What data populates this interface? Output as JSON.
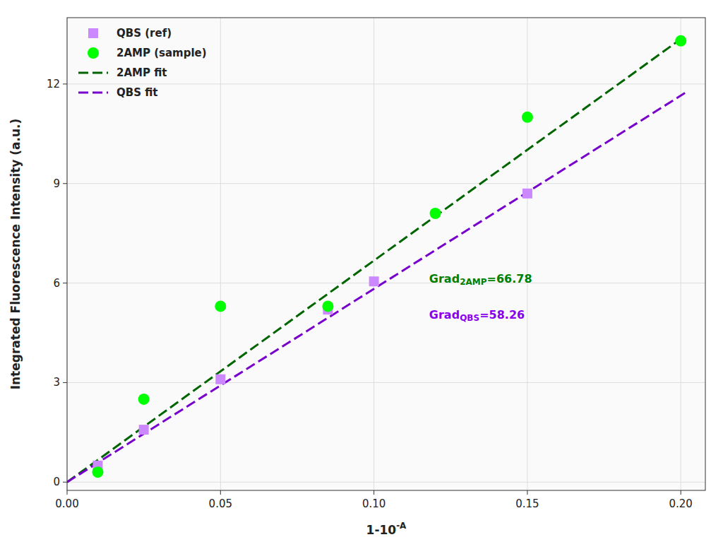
{
  "chart_data": {
    "type": "scatter",
    "x_label": {
      "text": "1-10",
      "sup": "-A"
    },
    "y_label": "Integrated Fluorescence Intensity (a.u.)",
    "xlim": [
      0.0,
      0.208
    ],
    "ylim": [
      -0.25,
      14.0
    ],
    "xticks": [
      {
        "value": 0.0,
        "label": "0.00"
      },
      0.05,
      {
        "value": 0.1,
        "label": "0.10"
      },
      0.15,
      {
        "value": 0.2,
        "label": "0.20"
      }
    ],
    "yticks": [
      0,
      3,
      6,
      9,
      12
    ],
    "grid": true,
    "legend": "upper left",
    "series": [
      {
        "name": "QBS (ref)",
        "type": "scatter",
        "marker": "square",
        "color": "#cc88ff",
        "x": [
          0.01,
          0.025,
          0.05,
          0.085,
          0.1,
          0.15
        ],
        "values": [
          0.5,
          1.58,
          3.1,
          5.2,
          6.05,
          8.7
        ]
      },
      {
        "name": "2AMP (sample)",
        "type": "scatter",
        "marker": "circle",
        "color": "#00ff00",
        "x": [
          0.01,
          0.025,
          0.05,
          0.085,
          0.12,
          0.15,
          0.2
        ],
        "values": [
          0.3,
          2.5,
          5.3,
          5.3,
          8.1,
          11.0,
          13.3
        ]
      },
      {
        "name": "2AMP fit",
        "type": "line",
        "line_style": "dashed",
        "color": "#006400",
        "x": [
          0.0,
          0.2015
        ],
        "values": [
          0.0,
          13.45617
        ]
      },
      {
        "name": "QBS fit",
        "type": "line",
        "line_style": "dashed",
        "color": "#7700cc",
        "x": [
          0.0,
          0.2015
        ],
        "values": [
          0.0,
          11.73939
        ]
      }
    ],
    "annotations": [
      {
        "text": "Grad",
        "sub": "2AMP",
        "tail": "=66.78",
        "x": 0.118,
        "y": 6.15,
        "color": "#008000"
      },
      {
        "text": "Grad",
        "sub": "QBS",
        "tail": "=58.26",
        "x": 0.118,
        "y": 5.05,
        "color": "#8800ee"
      }
    ]
  }
}
